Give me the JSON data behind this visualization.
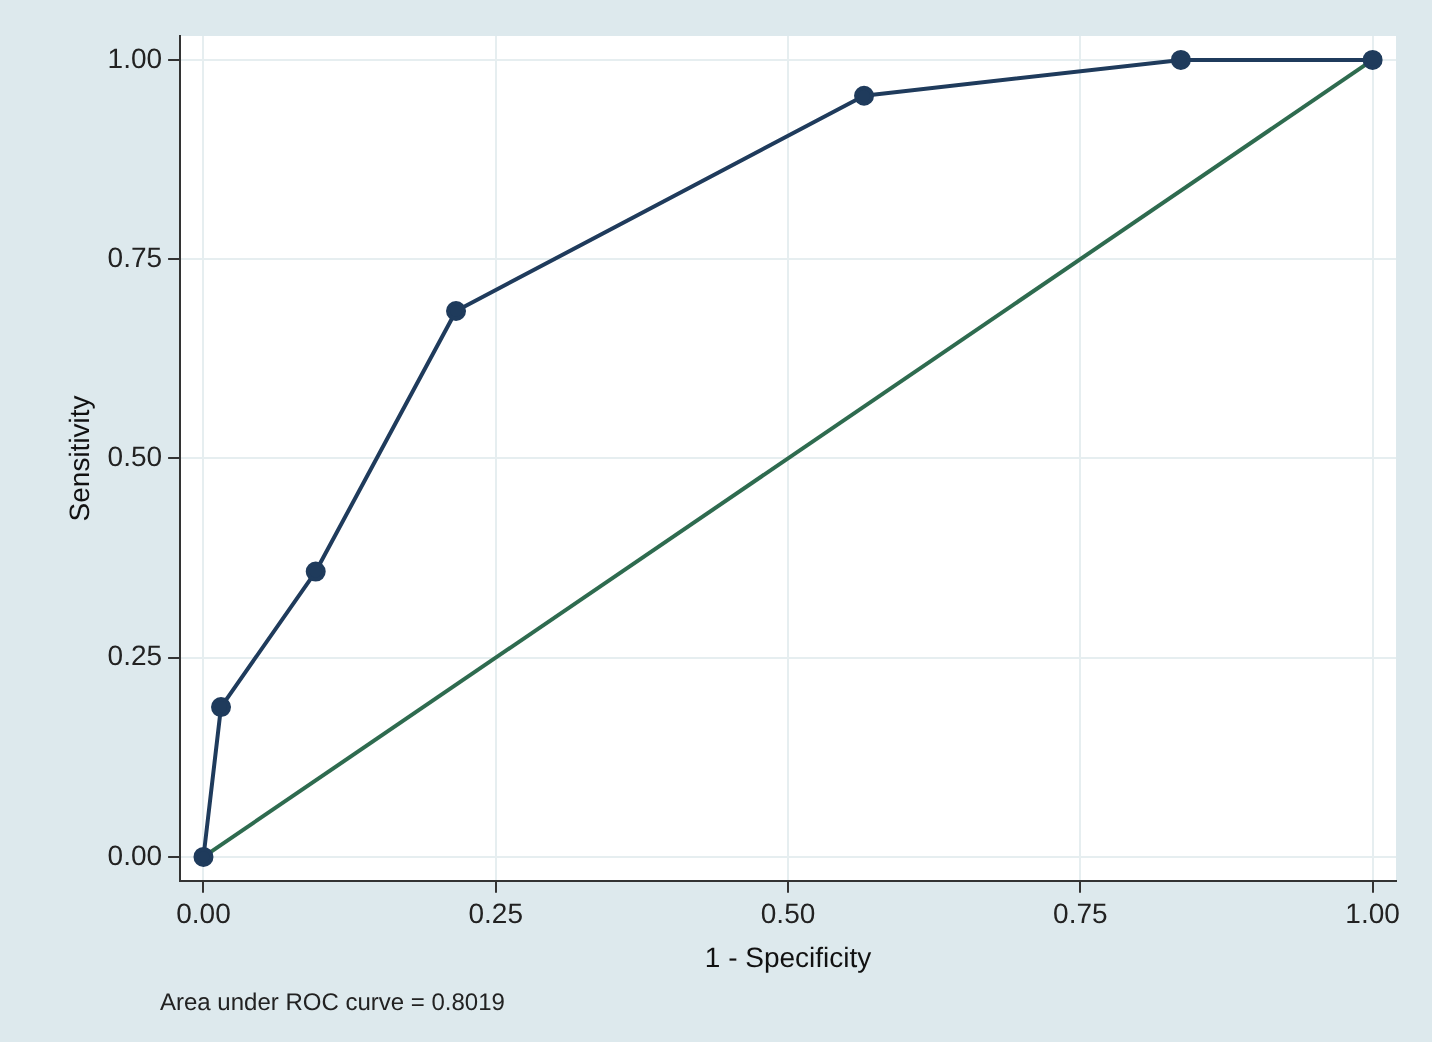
{
  "chart_data": {
    "type": "line",
    "xlabel": "1 - Specificity",
    "ylabel": "Sensitivity",
    "series": [
      {
        "type": "line",
        "color": "#1f3b5c",
        "marker": "circle",
        "x": [
          0,
          0.015,
          0.096,
          0.216,
          0.565,
          0.836,
          1
        ],
        "values": [
          0,
          0.188,
          0.358,
          0.685,
          0.955,
          1,
          1
        ]
      },
      {
        "type": "line",
        "color": "#2e6b4f",
        "marker": "none",
        "x": [
          0,
          1
        ],
        "values": [
          0,
          1
        ]
      }
    ],
    "xlim": [
      -0.02,
      1.02
    ],
    "ylim": [
      -0.03,
      1.03
    ],
    "xticks": [
      {
        "value": 0,
        "label": "0.00"
      },
      {
        "value": 0.25,
        "label": "0.25"
      },
      {
        "value": 0.5,
        "label": "0.50"
      },
      {
        "value": 0.75,
        "label": "0.75"
      },
      {
        "value": 1,
        "label": "1.00"
      }
    ],
    "yticks": [
      {
        "value": 0,
        "label": "0.00"
      },
      {
        "value": 0.25,
        "label": "0.25"
      },
      {
        "value": 0.5,
        "label": "0.50"
      },
      {
        "value": 0.75,
        "label": "0.75"
      },
      {
        "value": 1,
        "label": "1.00"
      }
    ],
    "grid": true,
    "legend": false,
    "annotations": [
      "Area under ROC curve = 0.8019"
    ]
  }
}
